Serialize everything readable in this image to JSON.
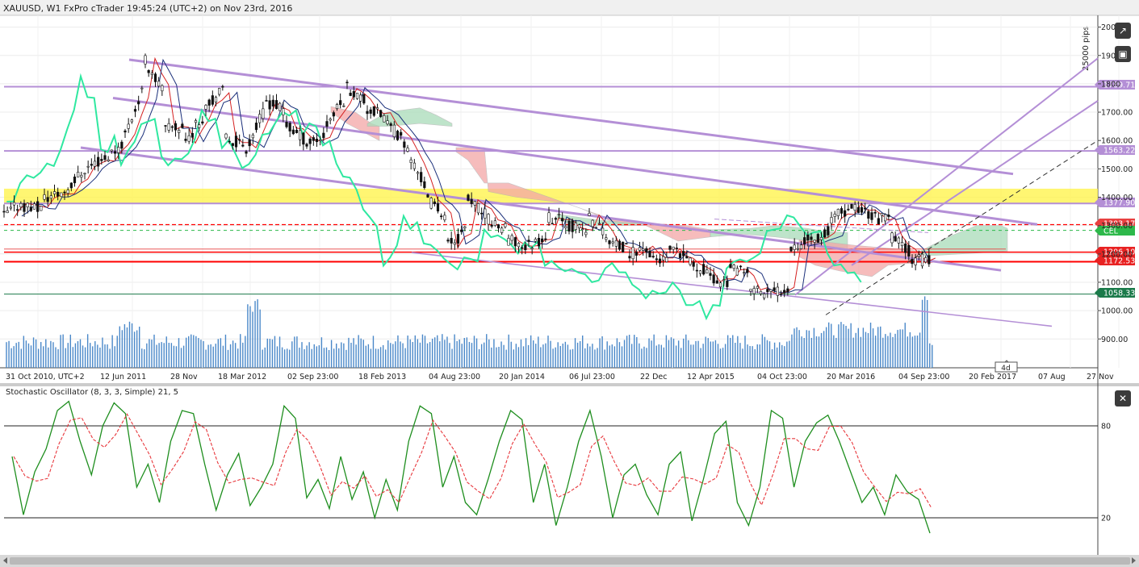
{
  "header": {
    "title": "XAUUSD, W1 FxPro cTrader 19:45:24 (UTC+2) on Nov 23rd, 2016"
  },
  "indicator": {
    "title": "Stochastic Oscillator (8, 3, 3, Simple) 21, 5",
    "levels": [
      "80",
      "20"
    ]
  },
  "pips_label": "25000 pips",
  "timer_label": "4d",
  "colors": {
    "bull": "#2e2e2e",
    "bear": "#1a1a1a",
    "channel": "#b48fd6",
    "support": "#ff0000",
    "yellow_zone": "#fff44f",
    "chikou": "#2fe8a0",
    "kumo_bear": "#f4a6a6",
    "kumo_bull": "#a9dcb9",
    "volume": "#4a88c9",
    "stoch_k": "#1e8e1e",
    "stoch_d": "#e8383d"
  },
  "price_tags": [
    {
      "text": "1789.71",
      "color": "#b48fd6"
    },
    {
      "text": "1563.22",
      "color": "#b48fd6"
    },
    {
      "text": "1377.90",
      "color": "#b48fd6"
    },
    {
      "text": "1303.17",
      "color": "#e84040"
    },
    {
      "text": "CEL",
      "color": "#2db84a"
    },
    {
      "text": "1206.10",
      "color": "#e82222"
    },
    {
      "text": "1172.53",
      "color": "#e82222"
    },
    {
      "text": "1058.33",
      "color": "#1b7a4a"
    }
  ],
  "chart_data": [
    {
      "type": "candlestick",
      "symbol": "XAUUSD",
      "timeframe": "W1",
      "y_ticks": [
        "2000",
        "1900",
        "1800",
        "1700.00",
        "1600.00",
        "1500.00",
        "1400.00",
        "1300.00",
        "1200.00",
        "1100.00",
        "1000.00",
        "900.00"
      ],
      "x_ticks": [
        "31 Oct 2010, UTC+2",
        "12 Jun 2011",
        "28 Nov",
        "18 Mar 2012",
        "02 Sep 23:00",
        "18 Feb 2013",
        "04 Aug 23:00",
        "20 Jan 2014",
        "06 Jul 23:00",
        "22 Dec",
        "12 Apr 2015",
        "04 Oct 23:00",
        "20 Mar 2016",
        "04 Sep 23:00",
        "20 Feb 2017",
        "07 Aug",
        "27 Nov"
      ],
      "ylim": [
        850,
        2020
      ],
      "horizontal_levels": [
        1789.71,
        1563.22,
        1377.9,
        1303.17,
        1206.1,
        1172.53,
        1058.33
      ],
      "close_path": [
        [
          1333,
          1390
        ],
        [
          1370,
          1360
        ],
        [
          1396,
          1420
        ],
        [
          1420,
          1500
        ],
        [
          1500,
          1540
        ],
        [
          1535,
          1600
        ],
        [
          1625,
          1800
        ],
        [
          1880,
          1760
        ],
        [
          1640,
          1650
        ],
        [
          1600,
          1700
        ],
        [
          1730,
          1780
        ],
        [
          1610,
          1580
        ],
        [
          1575,
          1720
        ],
        [
          1740,
          1700
        ],
        [
          1650,
          1600
        ],
        [
          1590,
          1620
        ],
        [
          1660,
          1760
        ],
        [
          1790,
          1730
        ],
        [
          1710,
          1680
        ],
        [
          1660,
          1580
        ],
        [
          1560,
          1420
        ],
        [
          1390,
          1330
        ],
        [
          1230,
          1290
        ],
        [
          1390,
          1330
        ],
        [
          1320,
          1280
        ],
        [
          1250,
          1220
        ],
        [
          1230,
          1270
        ],
        [
          1330,
          1310
        ],
        [
          1300,
          1280
        ],
        [
          1330,
          1260
        ],
        [
          1240,
          1210
        ],
        [
          1200,
          1230
        ],
        [
          1190,
          1170
        ],
        [
          1210,
          1180
        ],
        [
          1165,
          1140
        ],
        [
          1110,
          1100
        ],
        [
          1150,
          1120
        ],
        [
          1080,
          1060
        ],
        [
          1060,
          1090
        ],
        [
          1230,
          1250
        ],
        [
          1250,
          1280
        ],
        [
          1330,
          1350
        ],
        [
          1370,
          1340
        ],
        [
          1330,
          1320
        ],
        [
          1260,
          1205
        ],
        [
          1180,
          1175
        ]
      ]
    },
    {
      "type": "line",
      "title": "Stochastic Oscillator (8, 3, 3, Simple) 21, 5",
      "ylim": [
        0,
        100
      ],
      "levels": [
        80,
        20
      ],
      "series": [
        {
          "values": [
            60,
            22,
            50,
            65,
            90,
            96,
            70,
            48,
            80,
            95,
            88,
            40,
            55,
            30,
            70,
            90,
            88,
            55,
            25,
            48,
            62,
            28,
            40,
            55,
            93,
            85,
            33,
            45,
            26,
            60,
            32,
            50,
            20,
            45,
            25,
            70,
            93,
            88,
            40,
            60,
            30,
            22,
            45,
            70,
            90,
            84,
            30,
            55,
            15,
            40,
            70,
            90,
            60,
            20,
            48,
            55,
            35,
            22,
            55,
            63,
            18,
            45,
            75,
            83,
            30,
            15,
            40,
            90,
            85,
            40,
            70,
            82,
            87,
            70,
            50,
            30,
            40,
            22,
            48,
            37,
            32,
            10
          ]
        }
      ]
    }
  ]
}
